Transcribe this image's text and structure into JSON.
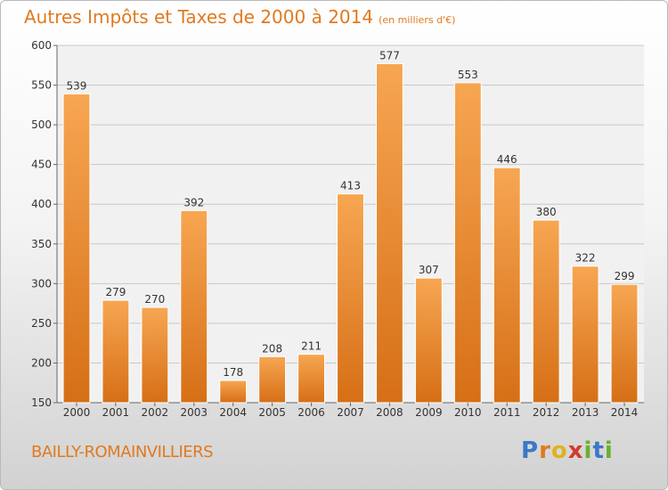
{
  "header": {
    "title": "Autres Impôts et Taxes de 2000 à 2014",
    "subtitle": "(en milliers d'€)"
  },
  "footer": {
    "place": "BAILLY-ROMAINVILLIERS",
    "logo": [
      "P",
      "r",
      "o",
      "x",
      "i",
      "t",
      "i"
    ]
  },
  "colors": {
    "bar_top": "#f7a652",
    "bar_bottom": "#d66f16",
    "accent": "#e07a1f"
  },
  "chart_data": {
    "type": "bar",
    "title": "Autres Impôts et Taxes de 2000 à 2014",
    "subtitle": "(en milliers d'€)",
    "categories": [
      "2000",
      "2001",
      "2002",
      "2003",
      "2004",
      "2005",
      "2006",
      "2007",
      "2008",
      "2009",
      "2010",
      "2011",
      "2012",
      "2013",
      "2014"
    ],
    "values": [
      539,
      279,
      270,
      392,
      178,
      208,
      211,
      413,
      577,
      307,
      553,
      446,
      380,
      322,
      299
    ],
    "ylim": [
      150,
      600
    ],
    "yticks": [
      150,
      200,
      250,
      300,
      350,
      400,
      450,
      500,
      550,
      600
    ],
    "grid": true,
    "xlabel": "",
    "ylabel": ""
  }
}
